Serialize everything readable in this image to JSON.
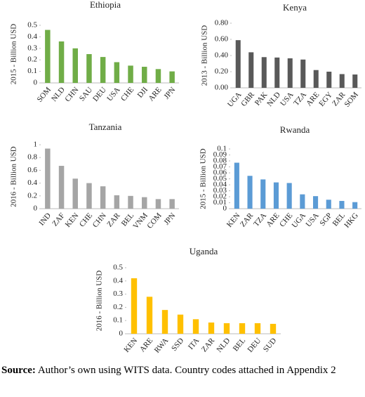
{
  "chart_data": [
    {
      "type": "bar",
      "title": "Ethiopia",
      "y_label": "2015 - Billion USD",
      "color": "#70ad47",
      "categories": [
        "SOM",
        "NLD",
        "CHN",
        "SAU",
        "DEU",
        "USA",
        "CHE",
        "DJI",
        "ARE",
        "JPN"
      ],
      "values": [
        0.46,
        0.36,
        0.3,
        0.25,
        0.225,
        0.18,
        0.15,
        0.14,
        0.12,
        0.1
      ],
      "ylim": [
        0,
        0.5
      ],
      "yticks": [
        0,
        0.1,
        0.2,
        0.3,
        0.4,
        0.5
      ]
    },
    {
      "type": "bar",
      "title": "Kenya",
      "y_label": "2013 - Billion USD",
      "color": "#595959",
      "categories": [
        "UGA",
        "GBR",
        "PAK",
        "NLD",
        "USA",
        "TZA",
        "ARE",
        "EGY",
        "ZAR",
        "SOM"
      ],
      "values": [
        0.59,
        0.44,
        0.38,
        0.375,
        0.365,
        0.35,
        0.22,
        0.2,
        0.17,
        0.165
      ],
      "ylim": [
        0,
        0.8
      ],
      "yticks": [
        {
          "value": 0,
          "label": "0.00"
        },
        {
          "value": 0.2,
          "label": "0.20"
        },
        {
          "value": 0.4,
          "label": "0.40"
        },
        {
          "value": 0.6,
          "label": "0.60"
        },
        {
          "value": 0.8,
          "label": "0.80"
        }
      ]
    },
    {
      "type": "bar",
      "title": "Tanzania",
      "y_label": "2016 - Billion USD",
      "color": "#a5a5a5",
      "categories": [
        "IND",
        "ZAF",
        "KEN",
        "CHE",
        "CHN",
        "ZAR",
        "BEL",
        "VNM",
        "COM",
        "JPN"
      ],
      "values": [
        0.94,
        0.67,
        0.47,
        0.4,
        0.35,
        0.21,
        0.2,
        0.18,
        0.15,
        0.15
      ],
      "ylim": [
        0,
        1
      ],
      "yticks": [
        0,
        0.2,
        0.4,
        0.6,
        0.8,
        1
      ]
    },
    {
      "type": "bar",
      "title": "Rwanda",
      "y_label": "2015 - Billion USD",
      "color": "#5b9bd5",
      "categories": [
        "KEN",
        "ZAR",
        "TZA",
        "ARE",
        "CHE",
        "UGA",
        "USA",
        "SGP",
        "BEL",
        "HKG"
      ],
      "values": [
        0.077,
        0.055,
        0.049,
        0.044,
        0.043,
        0.024,
        0.021,
        0.015,
        0.013,
        0.011
      ],
      "ylim": [
        0,
        0.1
      ],
      "yticks": [
        0,
        0.01,
        0.02,
        0.03,
        0.04,
        0.05,
        0.06,
        0.07,
        0.08,
        0.09,
        0.1
      ]
    },
    {
      "type": "bar",
      "title": "Uganda",
      "y_label": "2016 - Billion USD",
      "color": "#ffc000",
      "categories": [
        "KEN",
        "ARE",
        "RWA",
        "SSD",
        "ITA",
        "ZAR",
        "NLD",
        "BEL",
        "DEU",
        "SUD"
      ],
      "values": [
        0.42,
        0.28,
        0.18,
        0.145,
        0.11,
        0.085,
        0.08,
        0.08,
        0.08,
        0.075
      ],
      "ylim": [
        0,
        0.5
      ],
      "yticks": [
        0,
        0.1,
        0.2,
        0.3,
        0.4,
        0.5
      ]
    }
  ],
  "source": {
    "label": "Source:",
    "text": "Author’s own using WITS data. Country codes attached in Appendix 2"
  }
}
